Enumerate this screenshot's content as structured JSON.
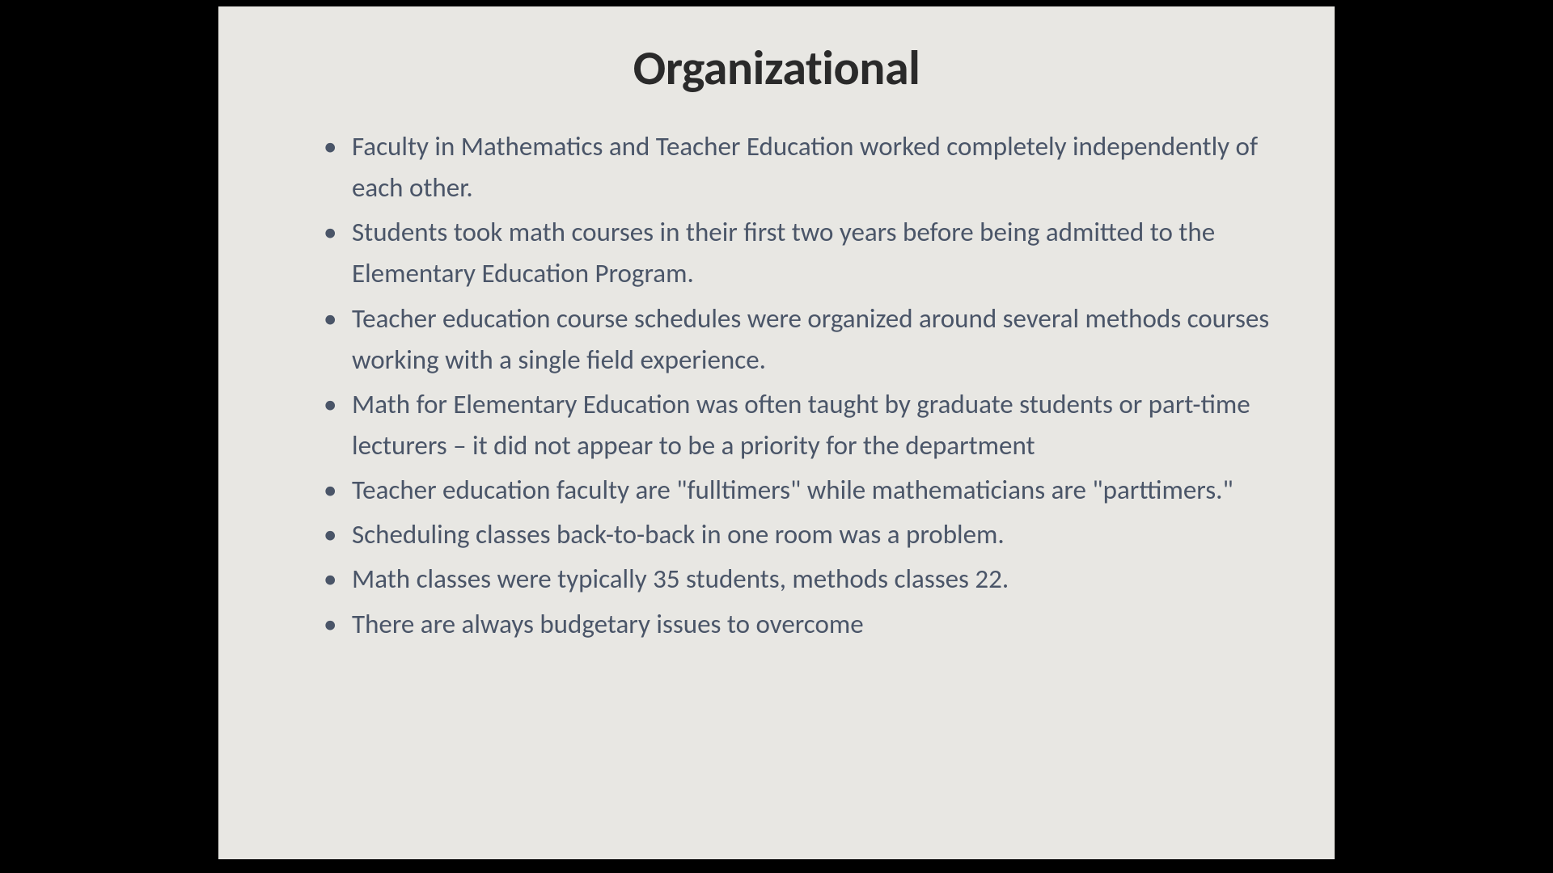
{
  "slide": {
    "title": "Organizational",
    "title_fontsize": 60,
    "title_color": "#2a2a2a",
    "body_fontsize": 33,
    "body_color": "#4a5568",
    "background_color": "#e8e7e3",
    "page_background": "#000000",
    "bullets": [
      "Faculty in Mathematics and Teacher Education worked completely independently of each other.",
      "Students took math courses in their first two years before being admitted to the Elementary Education Program.",
      "Teacher education course schedules were organized around several methods courses working with a single field experience.",
      "Math for Elementary Education was often taught by graduate students or part-time lecturers – it did not appear to be a priority for the department",
      "Teacher education faculty are \"fulltimers\" while mathematicians are \"parttimers.\"",
      "Scheduling classes back-to-back in one room was a problem.",
      "Math classes were typically 35 students, methods classes 22.",
      "There are always budgetary issues to overcome"
    ]
  }
}
